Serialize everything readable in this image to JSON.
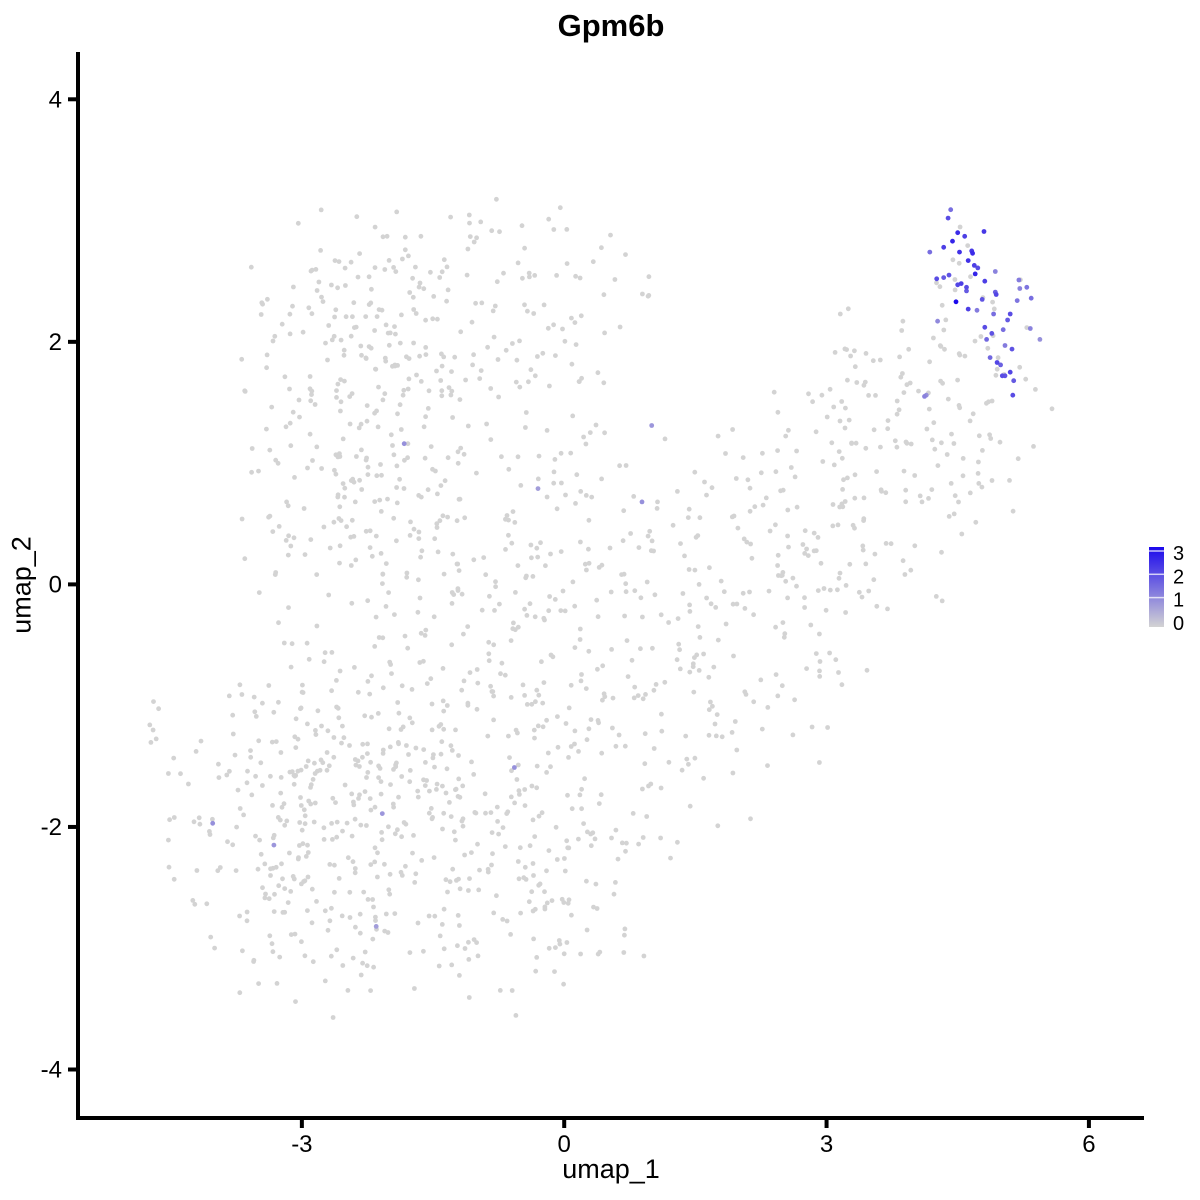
{
  "chart_data": {
    "type": "scatter",
    "subtype": "umap-feature-plot",
    "title": "Gpm6b",
    "xlabel": "umap_1",
    "ylabel": "umap_2",
    "xlim": [
      -5.56,
      6.63
    ],
    "ylim": [
      -4.4,
      4.39
    ],
    "xticks": [
      -3,
      0,
      3,
      6
    ],
    "yticks": [
      -4,
      -2,
      0,
      2,
      4
    ],
    "grid": false,
    "point_radius": 2.4,
    "colors": {
      "low": "#D3D3D3",
      "high": "#1C09EC",
      "axis": "#000000",
      "background": "#FFFFFF"
    },
    "legend": {
      "position": "right",
      "values": [
        3,
        2,
        1,
        0
      ],
      "vmin": 0,
      "vmax": 3
    },
    "expressing_points": [
      [
        4.42,
        3.09,
        1.5
      ],
      [
        4.39,
        3.02,
        2.0
      ],
      [
        4.5,
        2.9,
        2.5
      ],
      [
        4.58,
        2.87,
        2.2
      ],
      [
        4.8,
        2.91,
        2.3
      ],
      [
        4.44,
        2.83,
        2.6
      ],
      [
        4.34,
        2.78,
        2.2
      ],
      [
        4.52,
        2.74,
        2.4
      ],
      [
        4.66,
        2.75,
        2.3
      ],
      [
        4.62,
        2.67,
        2.4
      ],
      [
        4.69,
        2.63,
        2.2
      ],
      [
        4.73,
        2.61,
        2.0
      ],
      [
        4.26,
        2.52,
        2.0
      ],
      [
        4.34,
        2.53,
        1.8
      ],
      [
        4.4,
        2.55,
        1.9
      ],
      [
        4.54,
        2.48,
        2.2
      ],
      [
        4.6,
        2.45,
        2.0
      ],
      [
        4.93,
        2.58,
        1.2
      ],
      [
        5.2,
        2.51,
        1.3
      ],
      [
        5.29,
        2.45,
        1.4
      ],
      [
        4.94,
        2.39,
        2.1
      ],
      [
        5.34,
        2.36,
        1.5
      ],
      [
        5.18,
        2.34,
        1.4
      ],
      [
        4.48,
        2.33,
        3.0
      ],
      [
        4.62,
        2.27,
        2.2
      ],
      [
        5.1,
        2.23,
        2.0
      ],
      [
        5.07,
        2.18,
        1.8
      ],
      [
        4.72,
        2.26,
        1.3
      ],
      [
        4.89,
        2.07,
        1.9
      ],
      [
        4.83,
        2.02,
        1.6
      ],
      [
        5.04,
        1.97,
        1.3
      ],
      [
        4.87,
        1.87,
        1.6
      ],
      [
        4.95,
        1.83,
        2.1
      ],
      [
        4.99,
        1.81,
        1.7
      ],
      [
        5.1,
        1.75,
        2.1
      ],
      [
        5.01,
        1.72,
        2.0
      ],
      [
        5.14,
        1.68,
        1.8
      ],
      [
        4.27,
        2.17,
        1.1
      ],
      [
        4.67,
        2.73,
        2.5
      ],
      [
        4.7,
        2.56,
        2.6
      ],
      [
        4.81,
        2.5,
        2.2
      ],
      [
        4.5,
        2.47,
        2.1
      ],
      [
        4.6,
        2.42,
        1.8
      ],
      [
        4.93,
        2.41,
        1.7
      ],
      [
        5.21,
        2.44,
        1.2
      ],
      [
        4.81,
        2.12,
        2.0
      ],
      [
        5.12,
        1.94,
        1.9
      ],
      [
        5.04,
        1.72,
        1.9
      ],
      [
        5.13,
        1.56,
        2.0
      ],
      [
        4.14,
        1.56,
        1.0
      ],
      [
        4.18,
        2.74,
        1.5
      ],
      [
        5.33,
        2.11,
        1.2
      ],
      [
        5.44,
        2.02,
        1.0
      ],
      [
        4.91,
        2.23,
        1.5
      ],
      [
        4.78,
        2.35,
        1.9
      ],
      [
        5.02,
        2.1,
        1.5
      ],
      [
        -1.83,
        1.16,
        1.0
      ],
      [
        -0.3,
        0.79,
        0.8
      ],
      [
        1.0,
        1.31,
        0.9
      ],
      [
        0.89,
        0.68,
        1.0
      ],
      [
        4.12,
        1.55,
        1.2
      ],
      [
        -4.02,
        -1.97,
        1.0
      ],
      [
        -3.32,
        -2.15,
        0.9
      ],
      [
        -2.08,
        -1.89,
        0.9
      ],
      [
        -2.15,
        -2.82,
        0.8
      ],
      [
        -0.57,
        -1.51,
        1.0
      ]
    ],
    "background_clusters": [
      {
        "cx": -1.35,
        "cy": 2.3,
        "sdx": 1.2,
        "sdy": 0.5,
        "n": 180
      },
      {
        "cx": -2.4,
        "cy": 1.3,
        "sdx": 0.75,
        "sdy": 0.75,
        "n": 150
      },
      {
        "cx": -1.3,
        "cy": 0.1,
        "sdx": 1.25,
        "sdy": 0.95,
        "n": 260
      },
      {
        "cx": -2.8,
        "cy": -2.0,
        "sdx": 0.9,
        "sdy": 0.8,
        "n": 330
      },
      {
        "cx": -0.6,
        "cy": -2.2,
        "sdx": 1.0,
        "sdy": 0.7,
        "n": 220
      },
      {
        "cx": 0.9,
        "cy": -0.5,
        "sdx": 1.05,
        "sdy": 0.95,
        "n": 160
      },
      {
        "cx": 2.4,
        "cy": 0.0,
        "sdx": 0.75,
        "sdy": 0.85,
        "n": 110
      },
      {
        "cx": 3.6,
        "cy": 0.9,
        "sdx": 0.7,
        "sdy": 0.8,
        "n": 120
      },
      {
        "cx": 4.6,
        "cy": 1.7,
        "sdx": 0.5,
        "sdy": 0.7,
        "n": 80
      },
      {
        "cx": -4.72,
        "cy": -1.25,
        "sdx": 0.06,
        "sdy": 0.2,
        "n": 6
      }
    ],
    "seed": 12,
    "trunc_sd": 2.0,
    "diag_cutoff": 4.6,
    "data_bounds": {
      "x": [
        -5.3,
        6.4
      ],
      "y": [
        -4.2,
        4.25
      ]
    }
  }
}
